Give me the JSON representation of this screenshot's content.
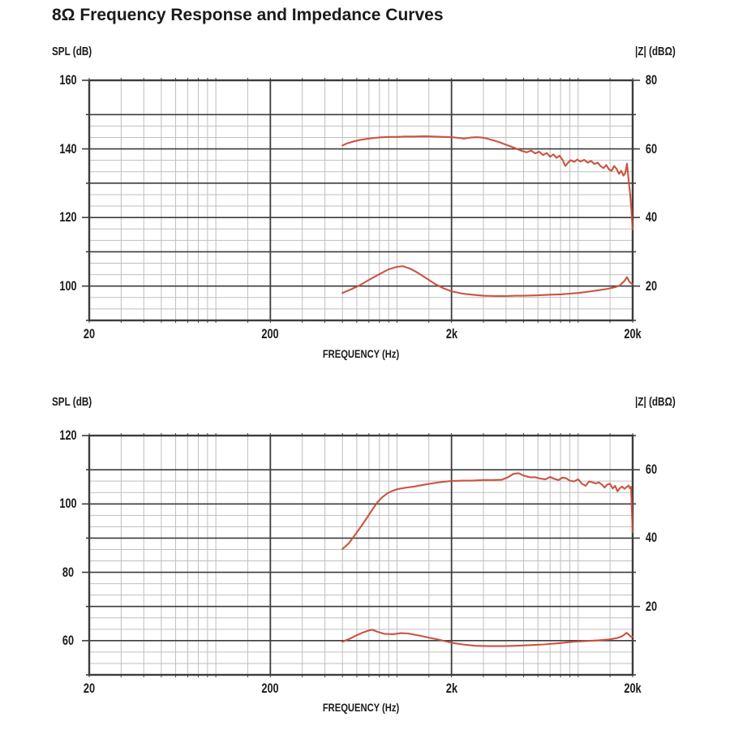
{
  "title": "8Ω Frequency Response and Impedance Curves",
  "chart_data": [
    {
      "type": "line",
      "name": "top-chart",
      "left_axis_label": "SPL (dB)",
      "right_axis_label": "|Z| (dBΩ)",
      "x_axis_label": "FREQUENCY (Hz)",
      "x_scale": "log",
      "x_range": [
        20,
        20000
      ],
      "x_tick_values": [
        20,
        200,
        2000,
        20000
      ],
      "x_tick_labels": [
        "20",
        "200",
        "2k",
        "20k"
      ],
      "left_range": [
        90,
        160
      ],
      "left_tick_values": [
        160,
        140,
        120,
        100
      ],
      "left_tick_labels": [
        "160",
        "140",
        "120",
        "100"
      ],
      "right_tick_values": [
        80,
        60,
        40,
        20
      ],
      "right_tick_labels": [
        "80",
        "60",
        "40",
        "20"
      ],
      "right_to_left_offset": 80,
      "grid": {
        "h_major_step": 10,
        "h_minor_fractions": [
          0.333,
          0.667
        ],
        "skip_minor_top_band": true
      },
      "curve_color": "#c84b37",
      "series": [
        {
          "name": "SPL response",
          "axis": "left",
          "points": [
            [
              500,
              141.0
            ],
            [
              530,
              141.6
            ],
            [
              570,
              142.1
            ],
            [
              620,
              142.6
            ],
            [
              680,
              142.9
            ],
            [
              750,
              143.2
            ],
            [
              830,
              143.4
            ],
            [
              920,
              143.5
            ],
            [
              1000,
              143.5
            ],
            [
              1100,
              143.6
            ],
            [
              1250,
              143.6
            ],
            [
              1400,
              143.7
            ],
            [
              1600,
              143.6
            ],
            [
              1800,
              143.5
            ],
            [
              2000,
              143.4
            ],
            [
              2200,
              143.2
            ],
            [
              2350,
              143.0
            ],
            [
              2550,
              143.3
            ],
            [
              2750,
              143.4
            ],
            [
              2950,
              143.3
            ],
            [
              3150,
              143.0
            ],
            [
              3400,
              142.5
            ],
            [
              3700,
              141.9
            ],
            [
              4000,
              141.2
            ],
            [
              4300,
              140.6
            ],
            [
              4600,
              140.0
            ],
            [
              4900,
              139.4
            ],
            [
              5200,
              139.0
            ],
            [
              5500,
              139.5
            ],
            [
              5800,
              138.7
            ],
            [
              6100,
              139.2
            ],
            [
              6400,
              138.2
            ],
            [
              6700,
              138.8
            ],
            [
              7000,
              137.7
            ],
            [
              7300,
              138.4
            ],
            [
              7600,
              137.4
            ],
            [
              7900,
              138.0
            ],
            [
              8200,
              136.8
            ],
            [
              8500,
              135.0
            ],
            [
              8800,
              136.0
            ],
            [
              9100,
              136.7
            ],
            [
              9500,
              136.2
            ],
            [
              9900,
              136.9
            ],
            [
              10300,
              136.3
            ],
            [
              10800,
              136.8
            ],
            [
              11300,
              136.0
            ],
            [
              11800,
              136.5
            ],
            [
              12300,
              135.6
            ],
            [
              12800,
              136.0
            ],
            [
              13300,
              135.0
            ],
            [
              13800,
              134.4
            ],
            [
              14300,
              135.3
            ],
            [
              14800,
              134.0
            ],
            [
              15300,
              133.6
            ],
            [
              15800,
              135.0
            ],
            [
              16300,
              134.2
            ],
            [
              16800,
              132.7
            ],
            [
              17300,
              133.6
            ],
            [
              17800,
              132.2
            ],
            [
              18200,
              133.0
            ],
            [
              18600,
              135.7
            ],
            [
              19000,
              131.0
            ],
            [
              19400,
              126.5
            ],
            [
              19700,
              122.0
            ],
            [
              20000,
              116.5
            ]
          ]
        },
        {
          "name": "Impedance magnitude",
          "axis": "right",
          "points": [
            [
              500,
              18.0
            ],
            [
              560,
              19.1
            ],
            [
              620,
              20.2
            ],
            [
              700,
              21.8
            ],
            [
              800,
              23.5
            ],
            [
              900,
              24.9
            ],
            [
              1000,
              25.6
            ],
            [
              1080,
              25.8
            ],
            [
              1180,
              25.1
            ],
            [
              1300,
              23.9
            ],
            [
              1450,
              22.3
            ],
            [
              1600,
              20.8
            ],
            [
              1800,
              19.4
            ],
            [
              2000,
              18.5
            ],
            [
              2300,
              17.8
            ],
            [
              2600,
              17.5
            ],
            [
              3000,
              17.2
            ],
            [
              3500,
              17.1
            ],
            [
              4000,
              17.1
            ],
            [
              4500,
              17.2
            ],
            [
              5000,
              17.2
            ],
            [
              6000,
              17.3
            ],
            [
              7000,
              17.5
            ],
            [
              8000,
              17.6
            ],
            [
              9000,
              17.8
            ],
            [
              10000,
              18.0
            ],
            [
              11500,
              18.4
            ],
            [
              13000,
              18.8
            ],
            [
              14500,
              19.2
            ],
            [
              16000,
              19.7
            ],
            [
              17000,
              20.2
            ],
            [
              18000,
              21.5
            ],
            [
              18600,
              22.6
            ],
            [
              19200,
              21.3
            ],
            [
              19600,
              20.8
            ],
            [
              20000,
              20.6
            ]
          ]
        }
      ]
    },
    {
      "type": "line",
      "name": "bottom-chart",
      "left_axis_label": "SPL (dB)",
      "right_axis_label": "|Z| (dBΩ)",
      "x_axis_label": "FREQUENCY (Hz)",
      "x_scale": "log",
      "x_range": [
        20,
        20000
      ],
      "x_tick_values": [
        20,
        200,
        2000,
        20000
      ],
      "x_tick_labels": [
        "20",
        "200",
        "2k",
        "20k"
      ],
      "left_range": [
        50,
        120
      ],
      "left_tick_values": [
        120,
        100,
        80,
        60
      ],
      "left_tick_labels": [
        "120",
        "100",
        "80",
        "60"
      ],
      "right_tick_values": [
        60,
        40,
        20
      ],
      "right_tick_labels": [
        "60",
        "40",
        "20"
      ],
      "right_to_left_offset": 50,
      "grid": {
        "h_major_step": 10,
        "h_minor_fractions": [
          0.333,
          0.667
        ],
        "skip_minor_top_band": true
      },
      "curve_color": "#c84b37",
      "series": [
        {
          "name": "SPL response",
          "axis": "left",
          "points": [
            [
              500,
              86.8
            ],
            [
              540,
              88.4
            ],
            [
              580,
              90.6
            ],
            [
              630,
              93.2
            ],
            [
              680,
              95.8
            ],
            [
              730,
              98.3
            ],
            [
              780,
              100.5
            ],
            [
              830,
              102.0
            ],
            [
              890,
              103.2
            ],
            [
              950,
              103.9
            ],
            [
              1000,
              104.3
            ],
            [
              1100,
              104.7
            ],
            [
              1250,
              105.1
            ],
            [
              1400,
              105.6
            ],
            [
              1600,
              106.1
            ],
            [
              1800,
              106.5
            ],
            [
              2000,
              106.7
            ],
            [
              2300,
              106.8
            ],
            [
              2600,
              106.8
            ],
            [
              3000,
              107.0
            ],
            [
              3400,
              107.0
            ],
            [
              3800,
              107.1
            ],
            [
              4100,
              107.8
            ],
            [
              4400,
              108.8
            ],
            [
              4700,
              109.0
            ],
            [
              5000,
              108.3
            ],
            [
              5400,
              107.8
            ],
            [
              5800,
              107.8
            ],
            [
              6200,
              107.4
            ],
            [
              6600,
              107.2
            ],
            [
              7000,
              107.9
            ],
            [
              7400,
              107.3
            ],
            [
              7800,
              107.0
            ],
            [
              8200,
              107.7
            ],
            [
              8600,
              107.5
            ],
            [
              9000,
              106.8
            ],
            [
              9500,
              106.6
            ],
            [
              10000,
              107.2
            ],
            [
              10500,
              105.9
            ],
            [
              11000,
              105.3
            ],
            [
              11500,
              106.6
            ],
            [
              12000,
              106.3
            ],
            [
              12500,
              106.0
            ],
            [
              13000,
              106.3
            ],
            [
              13500,
              105.7
            ],
            [
              14000,
              104.8
            ],
            [
              14500,
              105.7
            ],
            [
              15000,
              105.9
            ],
            [
              15500,
              104.5
            ],
            [
              16000,
              105.3
            ],
            [
              16500,
              103.7
            ],
            [
              17000,
              104.6
            ],
            [
              17500,
              105.1
            ],
            [
              18000,
              104.4
            ],
            [
              18500,
              104.9
            ],
            [
              19000,
              105.4
            ],
            [
              19300,
              104.6
            ],
            [
              19600,
              105.0
            ],
            [
              20000,
              91.7
            ]
          ]
        },
        {
          "name": "Impedance magnitude",
          "axis": "right",
          "points": [
            [
              500,
              9.7
            ],
            [
              550,
              10.6
            ],
            [
              600,
              11.6
            ],
            [
              650,
              12.4
            ],
            [
              700,
              13.0
            ],
            [
              730,
              13.2
            ],
            [
              780,
              12.6
            ],
            [
              850,
              12.0
            ],
            [
              950,
              11.9
            ],
            [
              1050,
              12.2
            ],
            [
              1150,
              12.1
            ],
            [
              1300,
              11.6
            ],
            [
              1500,
              10.9
            ],
            [
              1700,
              10.3
            ],
            [
              2000,
              9.4
            ],
            [
              2300,
              8.9
            ],
            [
              2700,
              8.5
            ],
            [
              3200,
              8.4
            ],
            [
              3800,
              8.4
            ],
            [
              4500,
              8.5
            ],
            [
              5500,
              8.7
            ],
            [
              6500,
              8.9
            ],
            [
              8000,
              9.3
            ],
            [
              9500,
              9.7
            ],
            [
              11000,
              9.9
            ],
            [
              13000,
              10.1
            ],
            [
              15000,
              10.4
            ],
            [
              16500,
              10.8
            ],
            [
              17500,
              11.3
            ],
            [
              18500,
              12.3
            ],
            [
              19200,
              11.6
            ],
            [
              19600,
              11.1
            ],
            [
              20000,
              11.2
            ]
          ]
        }
      ]
    }
  ]
}
